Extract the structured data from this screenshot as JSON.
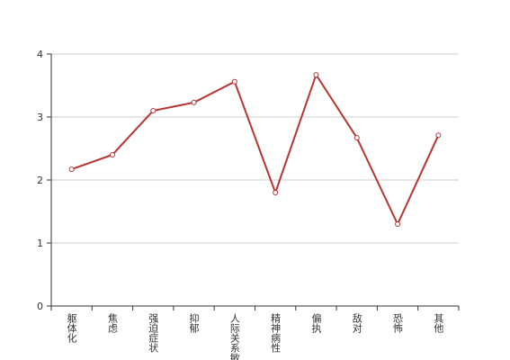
{
  "chart_data": {
    "type": "line",
    "categories": [
      "躯体化",
      "焦虑",
      "强迫症状",
      "抑郁",
      "人际关系敏感",
      "精神病性",
      "偏执",
      "敌对",
      "恐怖",
      "其他"
    ],
    "values": [
      2.17,
      2.4,
      3.1,
      3.23,
      3.56,
      1.8,
      3.67,
      2.67,
      1.3,
      2.71
    ],
    "color": "#b83434",
    "ylim": [
      0,
      4
    ],
    "yticks": [
      0,
      1,
      2,
      3,
      4
    ],
    "grid": true
  }
}
